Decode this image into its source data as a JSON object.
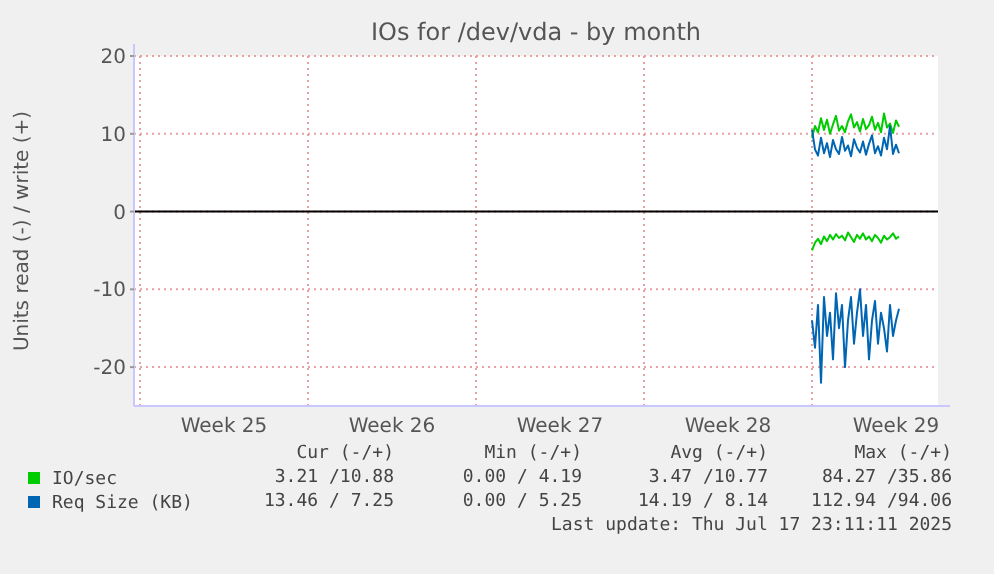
{
  "chart_data": {
    "type": "line",
    "title": "IOs for /dev/vda - by month",
    "ylabel": "Units read (-) / write (+)",
    "x": [
      "2025-07-14T00:00",
      "2025-07-14T03:00",
      "2025-07-14T06:00",
      "2025-07-14T09:00",
      "2025-07-14T12:00",
      "2025-07-14T15:00",
      "2025-07-14T18:00",
      "2025-07-14T21:00",
      "2025-07-15T00:00",
      "2025-07-15T03:00",
      "2025-07-15T06:00",
      "2025-07-15T09:00",
      "2025-07-15T12:00",
      "2025-07-15T15:00",
      "2025-07-15T18:00",
      "2025-07-15T21:00",
      "2025-07-16T00:00",
      "2025-07-16T03:00",
      "2025-07-16T06:00",
      "2025-07-16T09:00",
      "2025-07-16T12:00",
      "2025-07-16T15:00",
      "2025-07-16T18:00",
      "2025-07-16T21:00",
      "2025-07-17T00:00",
      "2025-07-17T03:00",
      "2025-07-17T06:00",
      "2025-07-17T09:00",
      "2025-07-17T12:00",
      "2025-07-17T15:00"
    ],
    "series": [
      {
        "name": "IO/sec",
        "color": "#00cc00",
        "values": [
          9.5,
          11,
          10.2,
          12,
          10.5,
          11.8,
          10,
          11.2,
          12.3,
          10.4,
          11,
          10.2,
          11.6,
          12.5,
          10.8,
          11.5,
          10.3,
          11.9,
          10.6,
          11.1,
          12.2,
          10.5,
          11.4,
          10.2,
          12.6,
          10.8,
          11.3,
          10.1,
          11.7,
          10.9
        ]
      },
      {
        "name": "Req Size (KB)",
        "color": "#0066b3",
        "values": [
          10.5,
          8,
          7.2,
          9.5,
          7.5,
          8.8,
          7,
          9.2,
          8,
          7.4,
          9.6,
          7.8,
          8.5,
          7.1,
          9.3,
          8.2,
          7.6,
          9,
          7.3,
          8.7,
          9.8,
          7.5,
          8.4,
          7.2,
          9.5,
          8,
          11,
          7.4,
          8.6,
          7.5
        ]
      },
      {
        "color": "#00cc00",
        "values": [
          -5,
          -4,
          -3.5,
          -4.2,
          -3.2,
          -3.8,
          -3,
          -3.6,
          -2.9,
          -3.4,
          -3.1,
          -3.7,
          -2.7,
          -3.3,
          -3.9,
          -3,
          -3.5,
          -2.8,
          -3.6,
          -3.2,
          -3.8,
          -3,
          -3.4,
          -4,
          -3.1,
          -3.6,
          -3.3,
          -2.8,
          -3.5,
          -3.2
        ]
      },
      {
        "color": "#0066b3",
        "values": [
          -14,
          -17.5,
          -12,
          -22,
          -11,
          -16,
          -13,
          -19,
          -10.5,
          -15,
          -12,
          -20,
          -14,
          -11,
          -17,
          -13,
          -10,
          -16,
          -12,
          -19,
          -14,
          -11.5,
          -17,
          -13,
          -15,
          -18,
          -12,
          -16,
          -14,
          -12.5
        ]
      }
    ],
    "xlim": [
      "2025-06-15T18:00",
      "2025-07-19T06:00"
    ],
    "xticks": [
      {
        "value": "2025-06-19T12:00",
        "label": "Week 25"
      },
      {
        "value": "2025-06-26T12:00",
        "label": "Week 26"
      },
      {
        "value": "2025-07-03T12:00",
        "label": "Week 27"
      },
      {
        "value": "2025-07-10T12:00",
        "label": "Week 28"
      },
      {
        "value": "2025-07-17T12:00",
        "label": "Week 29"
      }
    ],
    "ylim": [
      -25,
      20
    ],
    "yticks": [
      -20,
      -10,
      0,
      10,
      20
    ],
    "ref_lines": [
      {
        "axis": "y",
        "value": 0,
        "color": "#000000"
      }
    ],
    "grid": true,
    "legend": "bottom",
    "annotations": [
      "Cur (-/+)",
      "Min (-/+)",
      "Avg (-/+)",
      "Max (-/+)",
      "3.21 /10.88",
      "0.00 / 4.19",
      "3.47 /10.77",
      "84.27 /35.86",
      "13.46 / 7.25",
      "0.00 / 5.25",
      "14.19 / 8.14",
      "112.94 /94.06",
      "Last update: Thu Jul 17 23:11:11 2025"
    ]
  }
}
